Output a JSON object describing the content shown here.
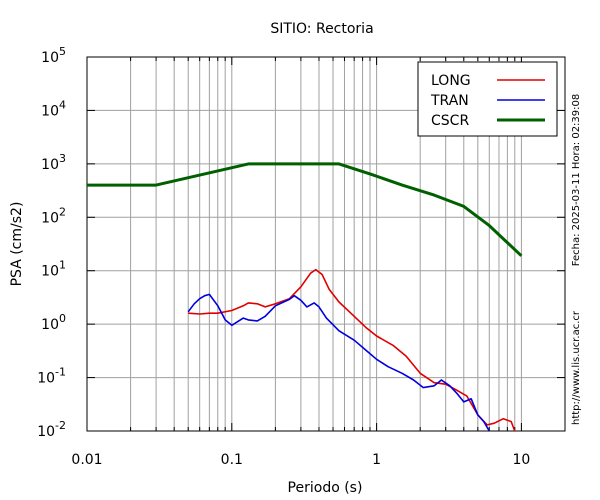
{
  "chart_data": {
    "type": "line",
    "title": "SITIO: Rectoria",
    "xlabel": "Periodo (s)",
    "ylabel": "PSA (cm/s2)",
    "xscale": "log",
    "yscale": "log",
    "xlim": [
      0.01,
      20
    ],
    "ylim": [
      0.01,
      100000
    ],
    "grid": true,
    "legend_position": "top-right",
    "x_ticks": [
      {
        "value": 0.01,
        "label": "0.01"
      },
      {
        "value": 0.1,
        "label": "0.1"
      },
      {
        "value": 1,
        "label": "1"
      },
      {
        "value": 10,
        "label": "10"
      }
    ],
    "y_ticks": [
      {
        "value": 0.01,
        "base": "10",
        "exp": "-2"
      },
      {
        "value": 0.1,
        "base": "10",
        "exp": "-1"
      },
      {
        "value": 1,
        "base": "10",
        "exp": "0"
      },
      {
        "value": 10,
        "base": "10",
        "exp": "1"
      },
      {
        "value": 100,
        "base": "10",
        "exp": "2"
      },
      {
        "value": 1000,
        "base": "10",
        "exp": "3"
      },
      {
        "value": 10000,
        "base": "10",
        "exp": "4"
      },
      {
        "value": 100000,
        "base": "10",
        "exp": "5"
      }
    ],
    "series": [
      {
        "name": "LONG",
        "color": "#e00000",
        "points": [
          [
            0.05,
            1.6
          ],
          [
            0.06,
            1.55
          ],
          [
            0.07,
            1.6
          ],
          [
            0.08,
            1.6
          ],
          [
            0.1,
            1.8
          ],
          [
            0.12,
            2.2
          ],
          [
            0.13,
            2.5
          ],
          [
            0.15,
            2.4
          ],
          [
            0.17,
            2.1
          ],
          [
            0.2,
            2.4
          ],
          [
            0.25,
            3.0
          ],
          [
            0.3,
            5.0
          ],
          [
            0.35,
            9.0
          ],
          [
            0.38,
            10.5
          ],
          [
            0.42,
            8.5
          ],
          [
            0.47,
            4.5
          ],
          [
            0.55,
            2.6
          ],
          [
            0.7,
            1.4
          ],
          [
            0.85,
            0.85
          ],
          [
            1.0,
            0.6
          ],
          [
            1.3,
            0.4
          ],
          [
            1.6,
            0.25
          ],
          [
            2.0,
            0.12
          ],
          [
            2.5,
            0.08
          ],
          [
            3.0,
            0.075
          ],
          [
            3.5,
            0.06
          ],
          [
            4.2,
            0.045
          ],
          [
            5.0,
            0.02
          ],
          [
            5.8,
            0.013
          ],
          [
            6.5,
            0.014
          ],
          [
            7.5,
            0.017
          ],
          [
            8.5,
            0.015
          ],
          [
            9.0,
            0.01
          ]
        ]
      },
      {
        "name": "TRAN",
        "color": "#0000e0",
        "points": [
          [
            0.05,
            1.7
          ],
          [
            0.055,
            2.4
          ],
          [
            0.06,
            3.0
          ],
          [
            0.065,
            3.4
          ],
          [
            0.07,
            3.6
          ],
          [
            0.08,
            2.2
          ],
          [
            0.09,
            1.2
          ],
          [
            0.1,
            0.95
          ],
          [
            0.12,
            1.3
          ],
          [
            0.13,
            1.2
          ],
          [
            0.15,
            1.15
          ],
          [
            0.17,
            1.4
          ],
          [
            0.2,
            2.2
          ],
          [
            0.25,
            2.9
          ],
          [
            0.27,
            3.4
          ],
          [
            0.3,
            2.8
          ],
          [
            0.33,
            2.1
          ],
          [
            0.37,
            2.5
          ],
          [
            0.4,
            2.1
          ],
          [
            0.45,
            1.3
          ],
          [
            0.55,
            0.75
          ],
          [
            0.7,
            0.5
          ],
          [
            0.85,
            0.32
          ],
          [
            1.0,
            0.22
          ],
          [
            1.2,
            0.16
          ],
          [
            1.5,
            0.12
          ],
          [
            1.8,
            0.09
          ],
          [
            2.1,
            0.065
          ],
          [
            2.5,
            0.07
          ],
          [
            2.8,
            0.09
          ],
          [
            3.2,
            0.07
          ],
          [
            3.6,
            0.05
          ],
          [
            4.0,
            0.035
          ],
          [
            4.5,
            0.04
          ],
          [
            5.0,
            0.02
          ],
          [
            5.5,
            0.015
          ],
          [
            6.0,
            0.01
          ]
        ]
      },
      {
        "name": "CSCR",
        "color": "#006000",
        "points": [
          [
            0.01,
            400
          ],
          [
            0.03,
            400
          ],
          [
            0.13,
            1000
          ],
          [
            0.55,
            1000
          ],
          [
            0.9,
            650
          ],
          [
            1.5,
            400
          ],
          [
            2.5,
            260
          ],
          [
            4.0,
            160
          ],
          [
            6.0,
            70
          ],
          [
            10.0,
            19
          ]
        ]
      }
    ]
  },
  "side_texts": {
    "date_time": "Fecha: 2025-03-11 Hora: 02:39:08",
    "url": "http://www.lis.ucr.ac.cr"
  }
}
